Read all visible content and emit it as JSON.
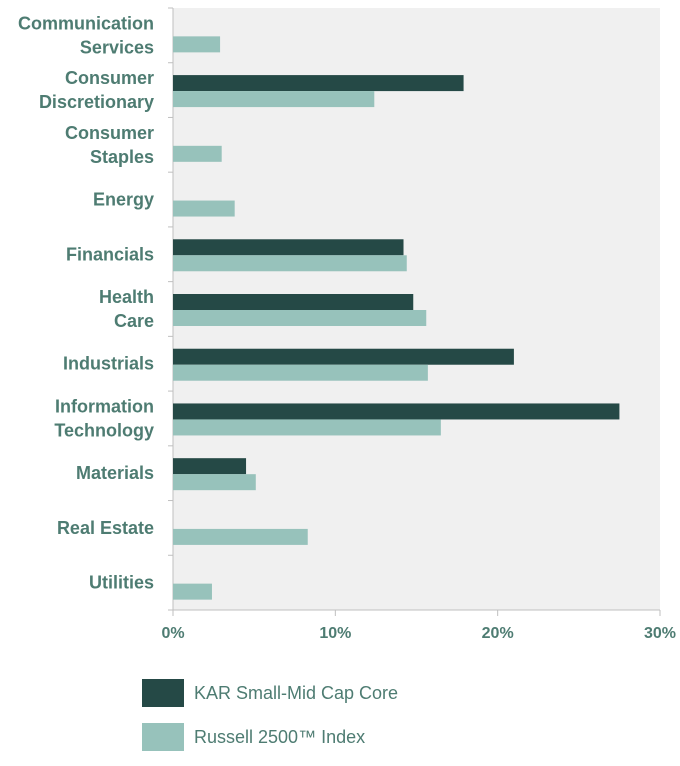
{
  "chart_data": {
    "type": "bar",
    "orientation": "horizontal",
    "categories": [
      "Communication\nServices",
      "Consumer\nDiscretionary",
      "Consumer\nStaples",
      "Energy",
      "Financials",
      "Health\nCare",
      "Industrials",
      "Information\nTechnology",
      "Materials",
      "Real Estate",
      "Utilities"
    ],
    "series": [
      {
        "name": "KAR Small-Mid Cap Core",
        "color": "#254946",
        "values": [
          0,
          17.9,
          0,
          0,
          14.2,
          14.8,
          21.0,
          27.5,
          4.5,
          0,
          0
        ]
      },
      {
        "name": "Russell 2500™ Index",
        "color": "#97c2bb",
        "values": [
          2.9,
          12.4,
          3.0,
          3.8,
          14.4,
          15.6,
          15.7,
          16.5,
          5.1,
          8.3,
          2.4
        ]
      }
    ],
    "xlim": [
      0,
      30
    ],
    "xticks": [
      "0%",
      "10%",
      "20%",
      "30%"
    ],
    "grid": false,
    "background_color": "#f0f0f0",
    "label_color": "#4e7c72",
    "legend_position": "bottom"
  }
}
